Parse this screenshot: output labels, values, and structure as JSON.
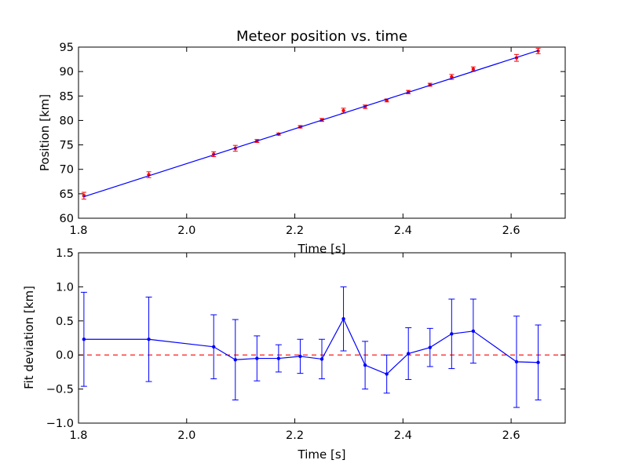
{
  "colors": {
    "fit_line": "#0000ff",
    "points": "#ff0000",
    "zero_line": "#ff0000",
    "residual": "#0000ff"
  },
  "chart_data": [
    {
      "type": "scatter",
      "title": "Meteor position vs. time",
      "xlabel": "Time [s]",
      "ylabel": "Position [km]",
      "xlim": [
        1.8,
        2.7
      ],
      "ylim": [
        60,
        95
      ],
      "xticks": [
        "1.8",
        "2.0",
        "2.2",
        "2.4",
        "2.6"
      ],
      "yticks": [
        "60",
        "65",
        "70",
        "75",
        "80",
        "85",
        "90",
        "95"
      ],
      "series": [
        {
          "kind": "errorbar",
          "x": [
            1.81,
            1.93,
            2.05,
            2.09,
            2.13,
            2.17,
            2.21,
            2.25,
            2.29,
            2.33,
            2.37,
            2.41,
            2.45,
            2.49,
            2.53,
            2.61,
            2.65
          ],
          "y": [
            64.6,
            68.9,
            73.1,
            74.3,
            75.8,
            77.2,
            78.7,
            80.1,
            82.0,
            82.8,
            84.1,
            85.8,
            87.3,
            88.9,
            90.5,
            92.8,
            94.2
          ],
          "err": [
            0.7,
            0.6,
            0.5,
            0.6,
            0.3,
            0.2,
            0.25,
            0.3,
            0.5,
            0.35,
            0.3,
            0.35,
            0.3,
            0.5,
            0.45,
            0.7,
            0.55
          ]
        },
        {
          "kind": "line",
          "x": [
            1.81,
            2.65
          ],
          "y": [
            64.4,
            94.3
          ]
        }
      ]
    },
    {
      "type": "line",
      "title": "",
      "xlabel": "Time [s]",
      "ylabel": "Fit deviation [km]",
      "xlim": [
        1.8,
        2.7
      ],
      "ylim": [
        -1.0,
        1.5
      ],
      "xticks": [
        "1.8",
        "2.0",
        "2.2",
        "2.4",
        "2.6"
      ],
      "yticks": [
        "−1.0",
        "−0.5",
        "0.0",
        "0.5",
        "1.0",
        "1.5"
      ],
      "reference_line": 0.0,
      "series": [
        {
          "kind": "errorbar-line",
          "x": [
            1.81,
            1.93,
            2.05,
            2.09,
            2.13,
            2.17,
            2.21,
            2.25,
            2.29,
            2.33,
            2.37,
            2.41,
            2.45,
            2.49,
            2.53,
            2.61,
            2.65
          ],
          "y": [
            0.23,
            0.23,
            0.12,
            -0.07,
            -0.05,
            -0.05,
            -0.02,
            -0.06,
            0.53,
            -0.15,
            -0.28,
            0.02,
            0.11,
            0.31,
            0.35,
            -0.1,
            -0.11
          ],
          "err": [
            0.69,
            0.62,
            0.47,
            0.59,
            0.33,
            0.2,
            0.25,
            0.29,
            0.47,
            0.35,
            0.28,
            0.38,
            0.28,
            0.51,
            0.47,
            0.67,
            0.55
          ]
        }
      ]
    }
  ]
}
